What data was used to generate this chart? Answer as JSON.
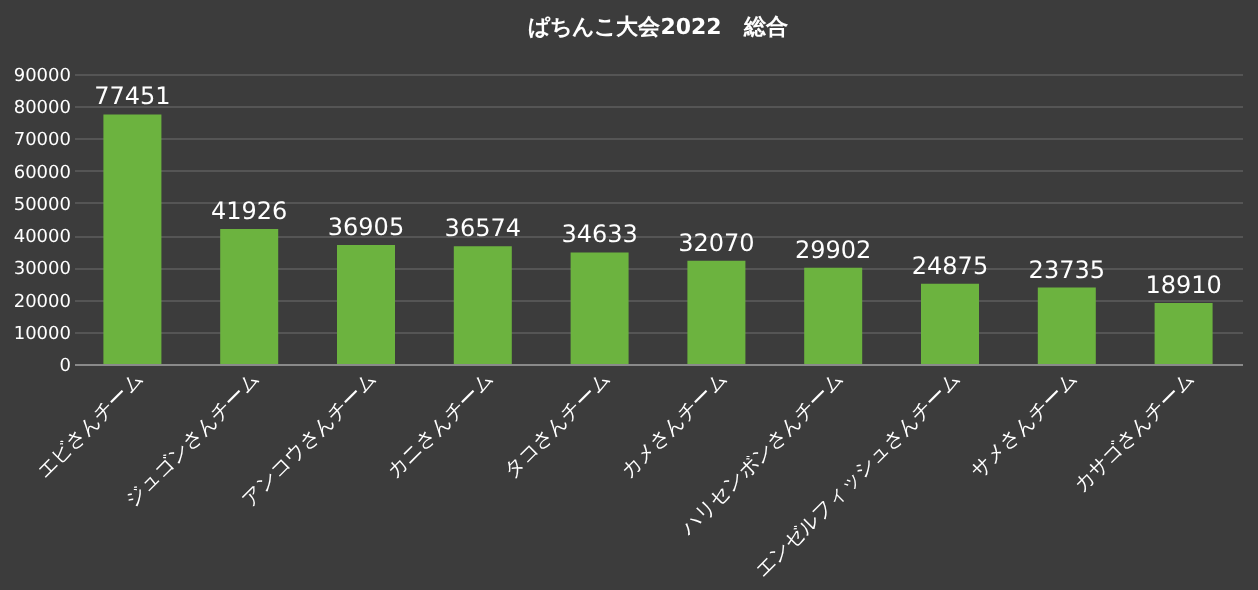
{
  "chart_data": {
    "type": "bar",
    "title": "ぱちんこ大会2022　総合",
    "categories": [
      "エビさんチーム",
      "ジュゴンさんチーム",
      "アンコウさんチーム",
      "カニさんチーム",
      "タコさんチーム",
      "カメさんチーム",
      "ハリセンボンさんチーム",
      "エンゼルフィッシュさんチーム",
      "サメさんチーム",
      "カサゴさんチーム"
    ],
    "values": [
      77451,
      41926,
      36905,
      36574,
      34633,
      32070,
      29902,
      24875,
      23735,
      18910
    ],
    "color": "#6cb33f",
    "data_labels": true,
    "grid": "y",
    "ylim": [
      0,
      90000
    ],
    "yticks": [
      0,
      10000,
      20000,
      30000,
      40000,
      50000,
      60000,
      70000,
      80000,
      90000
    ]
  }
}
